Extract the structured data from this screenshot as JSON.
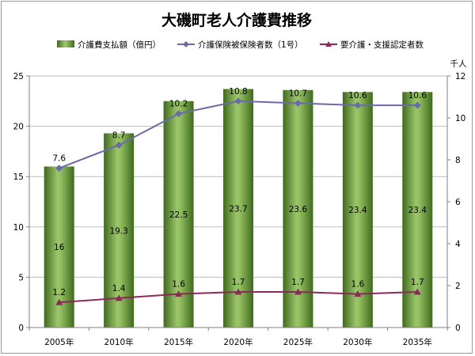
{
  "chart_data": {
    "type": "bar",
    "title": "大磯町老人介護費推移",
    "categories": [
      "2005年",
      "2010年",
      "2015年",
      "2020年",
      "2025年",
      "2030年",
      "2035年"
    ],
    "series": [
      {
        "name": "介護費支払額（億円）",
        "kind": "bar",
        "axis": "left",
        "values": [
          16,
          19.3,
          22.5,
          23.7,
          23.6,
          23.4,
          23.4
        ],
        "labels": [
          "16",
          "19.3",
          "22.5",
          "23.7",
          "23.6",
          "23.4",
          "23.4"
        ],
        "color": "#6a9a3c"
      },
      {
        "name": "介護保険被保険者数（1号）",
        "kind": "line",
        "axis": "right",
        "values": [
          7.6,
          8.7,
          10.2,
          10.8,
          10.7,
          10.6,
          10.6
        ],
        "labels": [
          "7.6",
          "8.7",
          "10.2",
          "10.8",
          "10.7",
          "10.6",
          "10.6"
        ],
        "color": "#6b6ba8",
        "marker": "diamond"
      },
      {
        "name": "要介護・支援認定者数",
        "kind": "line",
        "axis": "right",
        "values": [
          1.2,
          1.4,
          1.6,
          1.7,
          1.7,
          1.6,
          1.7
        ],
        "labels": [
          "1.2",
          "1.4",
          "1.6",
          "1.7",
          "1.7",
          "1.6",
          "1.7"
        ],
        "color": "#8b2a5a",
        "marker": "triangle"
      }
    ],
    "y_left": {
      "ylim": [
        0,
        25
      ],
      "ticks": [
        "0",
        "5",
        "10",
        "15",
        "20",
        "25"
      ]
    },
    "y_right": {
      "ylim": [
        0,
        12
      ],
      "ticks": [
        "0",
        "2",
        "4",
        "6",
        "8",
        "10",
        "12"
      ],
      "unit": "千人"
    },
    "grid": true,
    "legend_position": "top"
  }
}
